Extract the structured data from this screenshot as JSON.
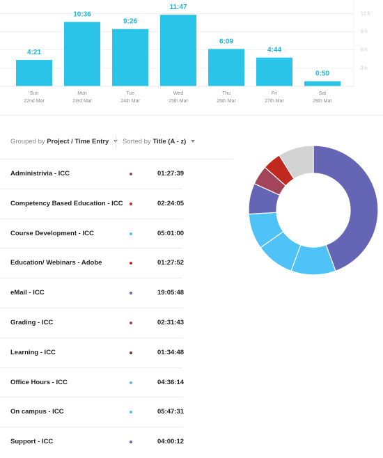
{
  "chart_data": {
    "type": "bar",
    "categories": [
      "Sun",
      "Mon",
      "Tue",
      "Wed",
      "Thu",
      "Fri",
      "Sat"
    ],
    "dates": [
      "22nd Mar",
      "23rd Mar",
      "24th Mar",
      "25th Mar",
      "26th Mar",
      "27th Mar",
      "28th Mar"
    ],
    "values": [
      4.35,
      10.6,
      9.4333,
      11.7833,
      6.15,
      4.7333,
      0.8333
    ],
    "value_labels": [
      "4:21",
      "10:36",
      "9:26",
      "11:47",
      "6:09",
      "4:44",
      "0:50"
    ],
    "y_ticks": [
      0,
      3,
      6,
      9,
      12
    ],
    "y_tick_labels": [
      "",
      "3 h",
      "6 h",
      "9 h",
      "12 h"
    ],
    "ylim": [
      0,
      13.7
    ],
    "bar_color": "#29c4e8",
    "label_color": "#1fb6de",
    "grid": true
  },
  "grouping": {
    "grouped_prefix": "Grouped by",
    "grouped_value": "Project / Time Entry",
    "sorted_prefix": "Sorted by",
    "sorted_value": "Title (A - z)"
  },
  "entries": [
    {
      "title": "Administrivia - ICC",
      "duration": "01:27:39",
      "color": "#a3455a",
      "hours": 1.4608
    },
    {
      "title": "Competency Based Education - ICC",
      "duration": "02:24:05",
      "color": "#c1302a",
      "hours": 2.4014
    },
    {
      "title": "Course Development - ICC",
      "duration": "05:01:00",
      "color": "#4fc3f7",
      "hours": 5.0167
    },
    {
      "title": "Education/ Webinars - Adobe",
      "duration": "01:27:52",
      "color": "#c1291f",
      "hours": 1.4644
    },
    {
      "title": "eMail - ICC",
      "duration": "19:05:48",
      "color": "#6565b5",
      "hours": 19.0967
    },
    {
      "title": "Grading - ICC",
      "duration": "02:31:43",
      "color": "#a3455a",
      "hours": 2.5286
    },
    {
      "title": "Learning - ICC",
      "duration": "01:34:48",
      "color": "#7a3327",
      "hours": 1.58
    },
    {
      "title": "Office Hours - ICC",
      "duration": "04:36:14",
      "color": "#4fc3f7",
      "hours": 4.6039
    },
    {
      "title": "On campus - ICC",
      "duration": "05:47:31",
      "color": "#4fc3f7",
      "hours": 5.7919
    },
    {
      "title": "Support - ICC",
      "duration": "04:00:12",
      "color": "#6565b5",
      "hours": 4.0033
    }
  ],
  "donut_data": {
    "type": "pie",
    "slices": [
      {
        "value": 23.1,
        "color": "#6565b5"
      },
      {
        "value": 5.8,
        "color": "#4fc3f7"
      },
      {
        "value": 5.0,
        "color": "#4fc3f7"
      },
      {
        "value": 4.6,
        "color": "#4fc3f7"
      },
      {
        "value": 4.0,
        "color": "#6565b5"
      },
      {
        "value": 2.5,
        "color": "#a3455a"
      },
      {
        "value": 2.4,
        "color": "#c1291f"
      },
      {
        "value": 4.6,
        "color": "#d3d3d3"
      }
    ]
  }
}
